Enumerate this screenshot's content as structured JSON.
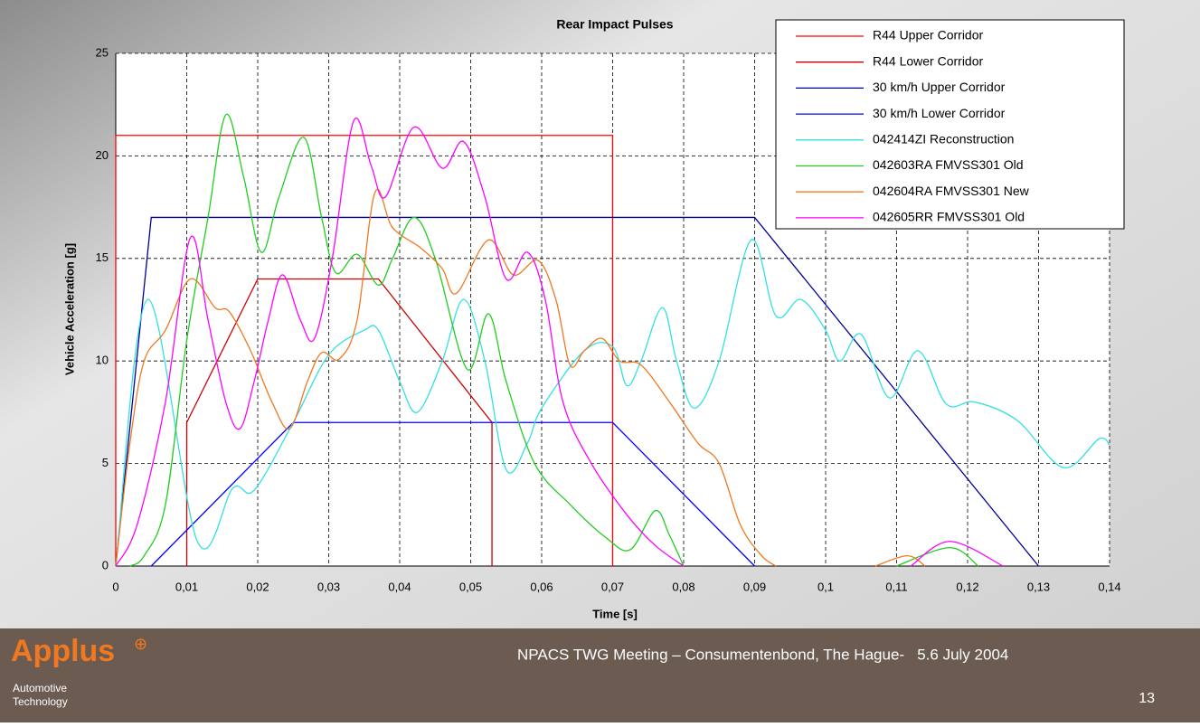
{
  "slide": {
    "logo": "Applus",
    "logo_mark": "⊕",
    "logo_sub": [
      "Automotive",
      "Technology"
    ],
    "footer": "NPACS TWG Meeting – Consumentenbond, The Hague-   5.6 July 2004",
    "page": "13"
  },
  "chart_data": {
    "type": "line",
    "title": "Rear Impact Pulses",
    "x_label": "Time [s]",
    "y_label": "Vehicle Acceleration [g]",
    "xlim": [
      0,
      0.14
    ],
    "ylim": [
      0,
      25
    ],
    "grid": true,
    "legend": "top-right",
    "xticks": [
      0,
      {
        "value": 0.01,
        "label": "0,01"
      },
      {
        "value": 0.02,
        "label": "0,02"
      },
      {
        "value": 0.03,
        "label": "0,03"
      },
      {
        "value": 0.04,
        "label": "0,04"
      },
      {
        "value": 0.05,
        "label": "0,05"
      },
      {
        "value": 0.06,
        "label": "0,06"
      },
      {
        "value": 0.07,
        "label": "0,07"
      },
      {
        "value": 0.08,
        "label": "0,08"
      },
      {
        "value": 0.09,
        "label": "0,09"
      },
      {
        "value": 0.1,
        "label": "0,1"
      },
      {
        "value": 0.11,
        "label": "0,11"
      },
      {
        "value": 0.12,
        "label": "0,12"
      },
      {
        "value": 0.13,
        "label": "0,13"
      },
      {
        "value": 0.14,
        "label": "0,14"
      }
    ],
    "yticks": [
      0,
      5,
      10,
      15,
      20,
      25
    ],
    "series": [
      {
        "name": "R44 Upper Corridor",
        "color": "#ff0000",
        "smooth": false,
        "x": [
          0,
          0,
          0.07,
          0.07
        ],
        "values": [
          0,
          21,
          21,
          0
        ]
      },
      {
        "name": "R44 Lower Corridor",
        "color": "#cc0000",
        "smooth": false,
        "x": [
          0.01,
          0.01,
          0.02,
          0.037,
          0.053,
          0.053
        ],
        "values": [
          0,
          7,
          14,
          14,
          7,
          0
        ]
      },
      {
        "name": "30 km/h Upper Corridor",
        "color": "#000099",
        "smooth": false,
        "x": [
          0,
          0.005,
          0.09,
          0.13
        ],
        "values": [
          0,
          17,
          17,
          0
        ]
      },
      {
        "name": "30 km/h Lower Corridor",
        "color": "#0000ff",
        "smooth": false,
        "x": [
          0.005,
          0.025,
          0.07,
          0.09
        ],
        "values": [
          0,
          7,
          7,
          0
        ]
      },
      {
        "name": "042414ZI Reconstruction",
        "color": "#33e0e0",
        "smooth": true,
        "x": [
          0,
          0.0045,
          0.0115,
          0.0165,
          0.0195,
          0.025,
          0.03,
          0.035,
          0.037,
          0.04,
          0.0425,
          0.046,
          0.049,
          0.052,
          0.055,
          0.058,
          0.06,
          0.066,
          0.07,
          0.072,
          0.074,
          0.077,
          0.079,
          0.0815,
          0.085,
          0.0895,
          0.093,
          0.0965,
          0.1,
          0.102,
          0.105,
          0.109,
          0.113,
          0.117,
          0.121,
          0.127,
          0.1335,
          0.1385,
          0.14
        ],
        "values": [
          0,
          13,
          1.2,
          3.8,
          3.7,
          7,
          10.3,
          11.5,
          11.5,
          9,
          7.5,
          10,
          13,
          10,
          4.7,
          6,
          7.7,
          10.5,
          10.7,
          8.8,
          10,
          12.6,
          10,
          7.7,
          10,
          15.9,
          12.2,
          13,
          11.5,
          10,
          11.3,
          8.2,
          10.5,
          7.9,
          8,
          7.1,
          4.8,
          6.2,
          5.9
        ]
      },
      {
        "name": "042603RA FMVSS301 Old",
        "color": "#22cc22",
        "smooth": true,
        "x": [
          0.002,
          0.004,
          0.007,
          0.01,
          0.013,
          0.0155,
          0.018,
          0.0205,
          0.023,
          0.0265,
          0.029,
          0.031,
          0.034,
          0.037,
          0.039,
          0.042,
          0.045,
          0.0495,
          0.0525,
          0.055,
          0.059,
          0.064,
          0.069,
          0.0725,
          0.076,
          0.078,
          0.08,
          null,
          0.11,
          0.1175,
          0.1215
        ],
        "values": [
          0,
          0.5,
          3,
          11,
          17,
          22,
          19,
          15.3,
          18,
          20.9,
          17,
          14.3,
          15.2,
          13.7,
          15,
          17,
          15,
          9.6,
          12.3,
          9,
          5,
          3,
          1.4,
          0.8,
          2.7,
          1.5,
          0,
          null,
          0,
          0.9,
          0
        ]
      },
      {
        "name": "042604RA FMVSS301 New",
        "color": "#f07820",
        "smooth": true,
        "x": [
          0,
          0.002,
          0.004,
          0.007,
          0.0105,
          0.014,
          0.016,
          0.019,
          0.022,
          0.0245,
          0.027,
          0.029,
          0.0315,
          0.034,
          0.0365,
          0.039,
          0.043,
          0.046,
          0.048,
          0.0525,
          0.056,
          0.0595,
          0.062,
          0.064,
          0.066,
          0.0685,
          0.071,
          0.074,
          0.078,
          0.082,
          0.085,
          0.088,
          0.091,
          0.093,
          null,
          0.107,
          0.1115,
          0.114
        ],
        "values": [
          0,
          6,
          10,
          11.5,
          14,
          12.6,
          12.4,
          10.5,
          8,
          6.7,
          9,
          10.4,
          10.1,
          12,
          18.2,
          16.5,
          15.5,
          14.5,
          13.3,
          15.9,
          14.2,
          14.9,
          13,
          9.8,
          10.5,
          11.1,
          10,
          9.8,
          8,
          6,
          5,
          2,
          0.5,
          0,
          null,
          0,
          0.5,
          0
        ]
      },
      {
        "name": "042605RR FMVSS301 Old",
        "color": "#ff00ff",
        "smooth": true,
        "x": [
          0,
          0.003,
          0.007,
          0.0105,
          0.013,
          0.0155,
          0.0175,
          0.0195,
          0.0215,
          0.0235,
          0.026,
          0.028,
          0.0305,
          0.0335,
          0.036,
          0.038,
          0.042,
          0.046,
          0.049,
          0.052,
          0.055,
          0.058,
          0.0605,
          0.063,
          0.067,
          0.072,
          0.076,
          0.08,
          null,
          0.112,
          0.1175,
          0.125
        ],
        "values": [
          0,
          2,
          8,
          16,
          12,
          8,
          6.7,
          9,
          12,
          14.2,
          12,
          11.1,
          15,
          21.7,
          19.5,
          18,
          21.4,
          19.4,
          20.7,
          18,
          14,
          15.3,
          13,
          8,
          5,
          2.5,
          1,
          0,
          null,
          0,
          1.2,
          0
        ]
      }
    ]
  }
}
